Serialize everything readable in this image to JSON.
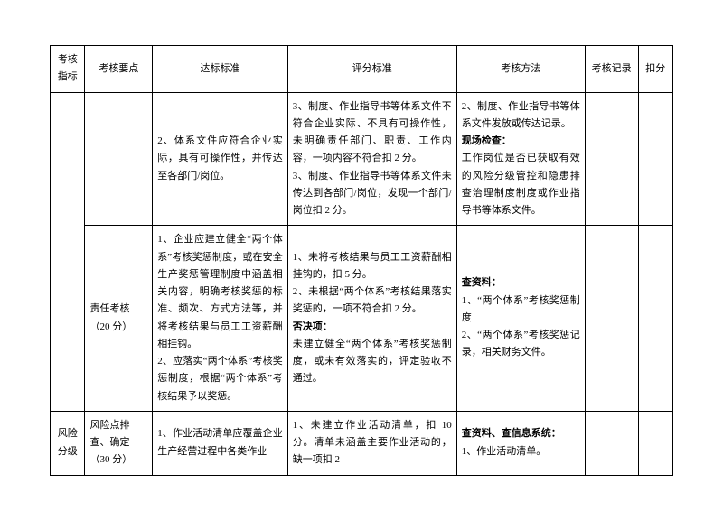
{
  "headers": {
    "c1": "考核指标",
    "c2": "考核要点",
    "c3": "达标标准",
    "c4": "评分标准",
    "c5": "考核方法",
    "c6": "考核记录",
    "c7": "扣分"
  },
  "row1": {
    "c3": "2、体系文件应符合企业实际，具有可操作性，并传达至各部门/岗位。",
    "c4": "3、制度、作业指导书等体系文件不符合企业实际、不具有可操作性，未明确责任部门、职责、工作内容，一项内容不符合扣 2 分。\n3、制度、作业指导书等体系文件未传达到各部门/岗位，发现一个部门/岗位扣 2 分。",
    "c5a": "2、制度、作业指导书等体系文件发放或传达记录。",
    "c5b_label": "现场检查：",
    "c5b": "工作岗位是否已获取有效的风险分级管控和隐患排查治理制度制度或作业指导书等体系文件。"
  },
  "row2": {
    "c2": "责任考核（20 分）",
    "c3": "1、企业应建立健全“两个体系”考核奖惩制度，或在安全生产奖惩管理制度中涵盖相关内容，明确考核奖惩的标准、频次、方式方法等，并将考核结果与员工工资薪酬相挂钩。\n2、应落实“两个体系”考核奖惩制度，根据“两个体系”考核结果予以奖惩。",
    "c4a": "1、未将考核结果与员工工资薪酬相挂钩的，扣 5 分。\n2、未根据“两个体系”考核结果落实奖惩的，一项不符合扣 2 分。",
    "c4b_label": "否决项：",
    "c4b": "未建立健全“两个体系”考核奖惩制度，或未有效落实的，评定验收不通过。",
    "c5_label": "查资料：",
    "c5": "1、“两个体系”考核奖惩制度\n2、“两个体系”考核奖惩记录，相关财务文件。"
  },
  "row3": {
    "c1": "风险分级",
    "c2": "风险点排查、确定（30 分）",
    "c3": "1、作业活动清单应覆盖企业生产经营过程中各类作业",
    "c4": "1、未建立作业活动清单，扣 10 分。清单未涵盖主要作业活动的，缺一项扣 2",
    "c5_label": "查资料、查信息系统：",
    "c5": "1、作业活动清单。"
  }
}
